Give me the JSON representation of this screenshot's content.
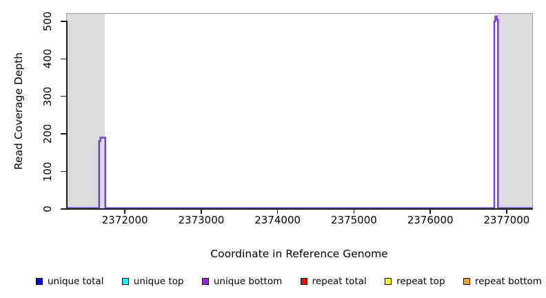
{
  "figure": {
    "background_color": "#ffffff",
    "frame_color": "#9c9c9c",
    "axis_color": "#1a1a1a"
  },
  "chart_data": {
    "type": "line",
    "title": "",
    "xlabel": "Coordinate in Reference Genome",
    "ylabel": "Read Coverage Depth",
    "xlim": [
      2371240,
      2377335
    ],
    "ylim": [
      0,
      520
    ],
    "x_ticks": [
      2372000,
      2373000,
      2374000,
      2375000,
      2376000,
      2377000
    ],
    "y_ticks": [
      0,
      100,
      200,
      300,
      400,
      500
    ],
    "grid": false,
    "shaded_regions": [
      {
        "x0": 2371240,
        "x1": 2371737,
        "color": "#dcdcdc"
      },
      {
        "x0": 2376875,
        "x1": 2377335,
        "color": "#dcdcdc"
      }
    ],
    "coverage_line": {
      "description": "visible step line (overlapping unique total / unique bottom traces)",
      "render_colors": [
        "#3d2fd2",
        "#8f49e6"
      ],
      "points": [
        [
          2371240,
          0
        ],
        [
          2371663,
          0
        ],
        [
          2371663,
          181
        ],
        [
          2371679,
          181
        ],
        [
          2371679,
          190
        ],
        [
          2371744,
          190
        ],
        [
          2371744,
          0
        ],
        [
          2376838,
          0
        ],
        [
          2376838,
          500
        ],
        [
          2376852,
          500
        ],
        [
          2376852,
          513
        ],
        [
          2376869,
          513
        ],
        [
          2376869,
          505
        ],
        [
          2376886,
          505
        ],
        [
          2376886,
          0
        ],
        [
          2377335,
          0
        ]
      ]
    },
    "base_accents": {
      "color": "#8fe08f",
      "segments": [
        {
          "x0": 2371663,
          "x1": 2371744
        },
        {
          "x0": 2376838,
          "x1": 2376886
        }
      ]
    },
    "legend": {
      "position": "bottom",
      "entries": [
        {
          "label": "unique total",
          "color": "#0000ff"
        },
        {
          "label": "unique top",
          "color": "#00ffff"
        },
        {
          "label": "unique bottom",
          "color": "#a020f0"
        },
        {
          "label": "repeat total",
          "color": "#ff0000"
        },
        {
          "label": "repeat top",
          "color": "#ffff00"
        },
        {
          "label": "repeat bottom",
          "color": "#ffa500"
        }
      ]
    }
  }
}
